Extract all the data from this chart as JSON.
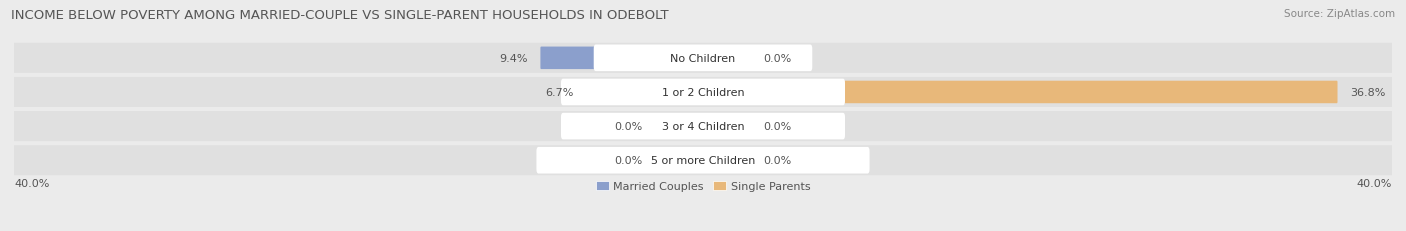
{
  "title": "INCOME BELOW POVERTY AMONG MARRIED-COUPLE VS SINGLE-PARENT HOUSEHOLDS IN ODEBOLT",
  "source": "Source: ZipAtlas.com",
  "categories": [
    "No Children",
    "1 or 2 Children",
    "3 or 4 Children",
    "5 or more Children"
  ],
  "married_values": [
    9.4,
    6.7,
    0.0,
    0.0
  ],
  "single_values": [
    0.0,
    36.8,
    0.0,
    0.0
  ],
  "married_color": "#8B9FCC",
  "single_color": "#E8B87A",
  "married_color_light": "#B8C4E0",
  "single_color_light": "#EDD0A8",
  "axis_limit": 40.0,
  "axis_label_left": "40.0%",
  "axis_label_right": "40.0%",
  "legend_married": "Married Couples",
  "legend_single": "Single Parents",
  "bg_color": "#ebebeb",
  "row_bg_color": "#e0e0e0",
  "label_bg_color": "#ffffff",
  "title_fontsize": 9.5,
  "source_fontsize": 7.5,
  "label_fontsize": 8,
  "category_fontsize": 8,
  "value_color": "#555555"
}
